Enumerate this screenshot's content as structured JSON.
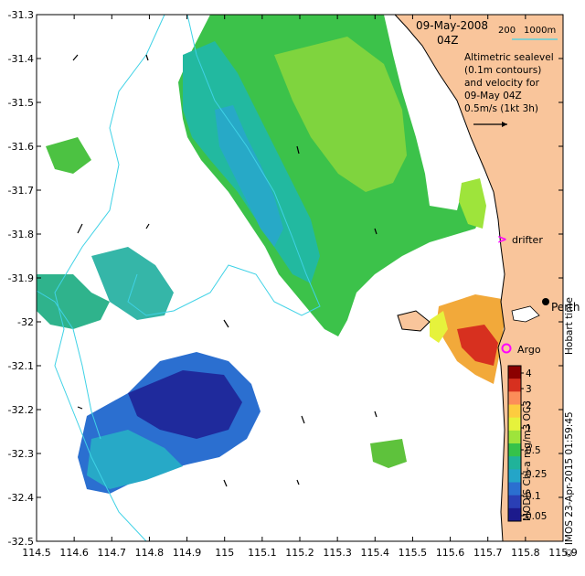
{
  "title": {
    "date": "09-May-2008",
    "time": "04Z",
    "scale_200": "200",
    "scale_1000": "1000m"
  },
  "legend": {
    "lines": [
      "Altimetric sealevel",
      "(0.1m contours)",
      "and velocity for",
      "09-May 04Z"
    ],
    "velocity_scale": "0.5m/s (1kt 3h)"
  },
  "labels": {
    "drifter": "drifter",
    "argo": "Argo",
    "perth": "Perth",
    "hobart_time": "Hobart time",
    "imos_credit": "© IMOS 23-Apr-2015 01:59:45",
    "colorbar_label": "MODIS Chl-a mg/m3 OC3"
  },
  "x_ticks": [
    "114.5",
    "114.6",
    "114.7",
    "114.8",
    "114.9",
    "115",
    "115.1",
    "115.2",
    "115.3",
    "115.4",
    "115.5",
    "115.6",
    "115.7",
    "115.8",
    "115.9"
  ],
  "y_ticks": [
    "-31.3",
    "-31.4",
    "-31.5",
    "-31.6",
    "-31.7",
    "-31.8",
    "-31.9",
    "-32",
    "-32.1",
    "-32.2",
    "-32.3",
    "-32.4",
    "-32.5"
  ],
  "colorbar": {
    "ticks": [
      "4",
      "3",
      "2",
      "1",
      "0.5",
      "0.25",
      "0.1",
      "0.05"
    ],
    "colors": [
      "#8b0000",
      "#d7301f",
      "#fc8d59",
      "#fdcc3f",
      "#e6f23c",
      "#9ee43b",
      "#35c24a",
      "#20b39a",
      "#24a5c8",
      "#2b6fd0",
      "#2a3fb5",
      "#1c1a8c"
    ]
  },
  "colors": {
    "land": "#f9c59b",
    "coast": "#000000",
    "bathymetry": "#3fd2e6"
  }
}
